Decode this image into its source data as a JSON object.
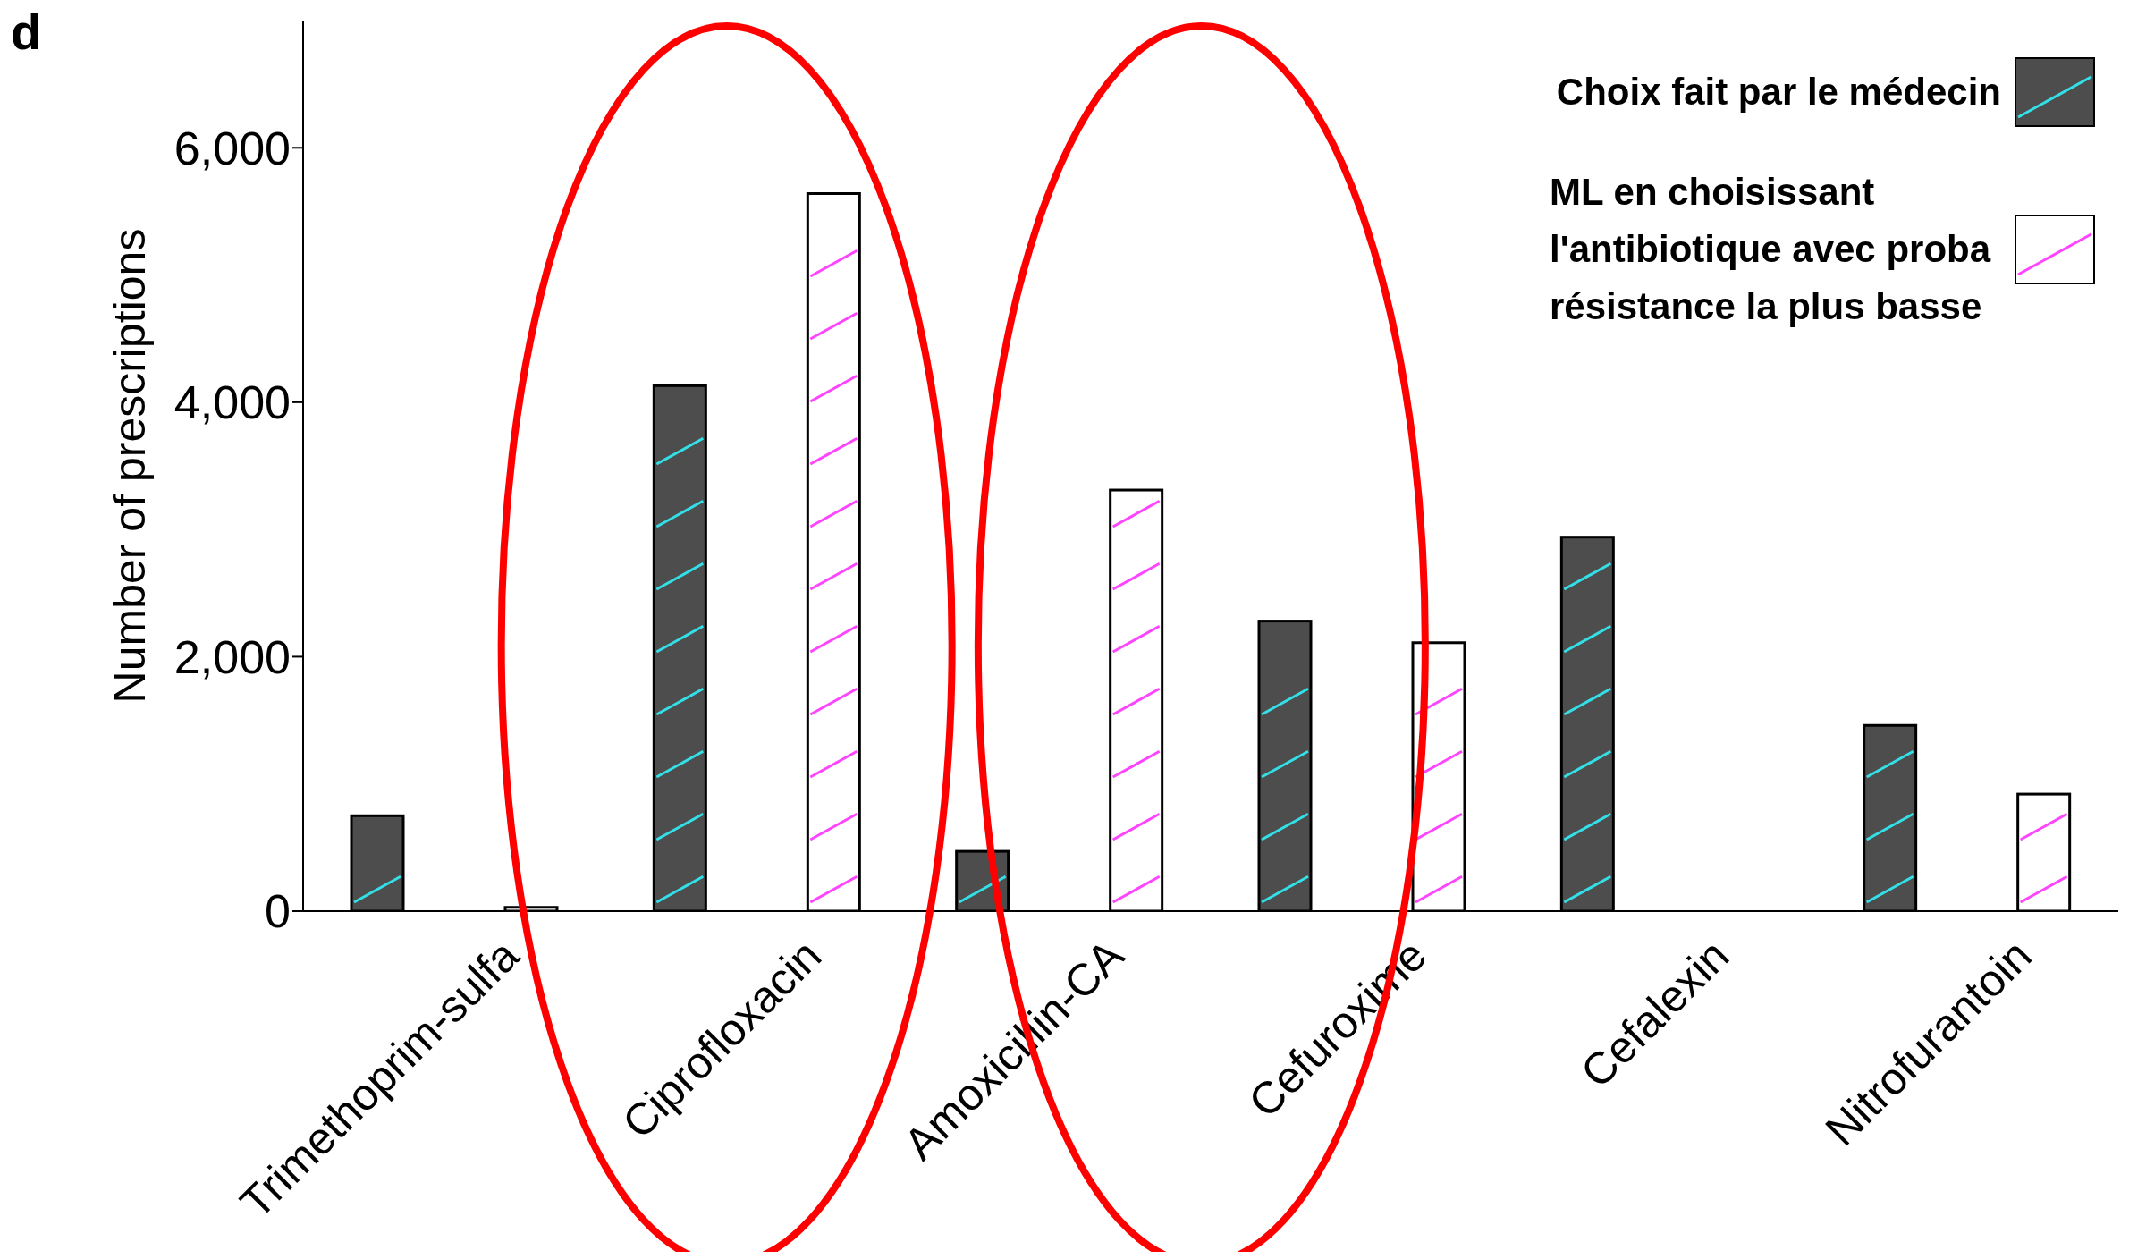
{
  "chart_data": {
    "type": "bar",
    "ylabel": "Number of prescriptions",
    "annotations": [
      "d"
    ],
    "categories": [
      "Trimethoprim-sulfa",
      "Ciprofloxacin",
      "Amoxicillin-CA",
      "Cefuroxime",
      "Cefalexin",
      "Nitrofurantoin"
    ],
    "series": [
      {
        "name": "Choix fait par le médecin",
        "color": "#4d4d4d",
        "values": [
          750,
          4130,
          470,
          2280,
          2940,
          1460
        ]
      },
      {
        "name": "ML en choisissant l'antibiotique avec proba résistance la plus basse",
        "color": "#ffffff",
        "values": [
          30,
          5640,
          3310,
          2110,
          0,
          920
        ]
      }
    ],
    "ylim": [
      0,
      7000
    ],
    "yticks": [
      0,
      {
        "value": 2000,
        "label": "2,000"
      },
      {
        "value": 4000,
        "label": "4,000"
      },
      {
        "value": 6000,
        "label": "6,000"
      }
    ],
    "grid": false,
    "legend": "top right"
  }
}
